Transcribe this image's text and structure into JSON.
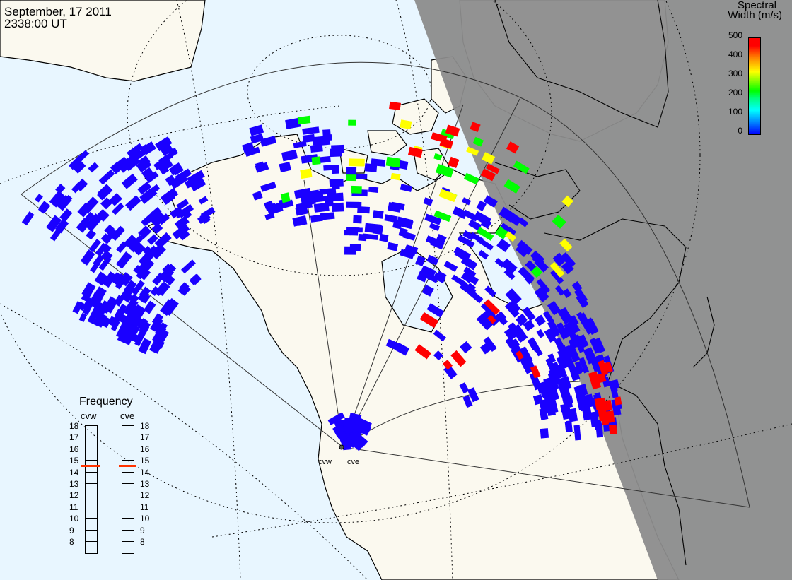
{
  "header": {
    "date": "September, 17 2011",
    "time": "2338:00 UT"
  },
  "colorbar": {
    "title_line1": "Spectral",
    "title_line2": "Width (m/s)",
    "ticks": [
      "500",
      "400",
      "300",
      "200",
      "100",
      "0"
    ],
    "colors": [
      "#0000ff",
      "#00ffff",
      "#00ff00",
      "#ffff00",
      "#ff8000",
      "#ff0000"
    ]
  },
  "frequency": {
    "title": "Frequency",
    "radars": [
      {
        "name": "cvw",
        "value": 15
      },
      {
        "name": "cve",
        "value": 15
      }
    ],
    "scale": [
      "18",
      "17",
      "16",
      "15",
      "14",
      "13",
      "12",
      "11",
      "10",
      "9",
      "8"
    ]
  },
  "sites": [
    "cvw",
    "cve"
  ],
  "map_colors": {
    "ocean": "#e8f6ff",
    "land": "#fbf9ef",
    "night": "#8c8c8c"
  }
}
